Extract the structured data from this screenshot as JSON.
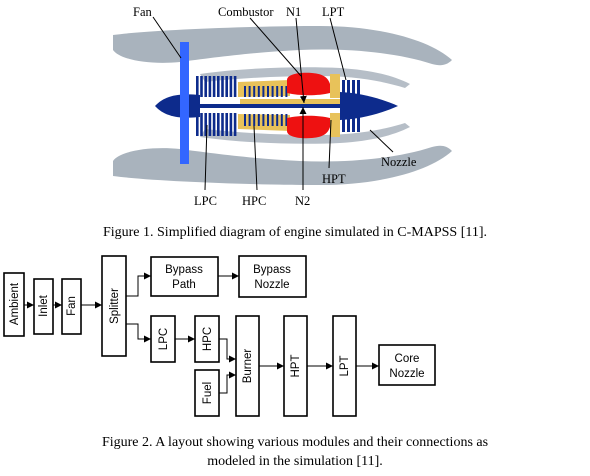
{
  "figure1": {
    "labels": {
      "fan": "Fan",
      "combustor": "Combustor",
      "n1": "N1",
      "lpt": "LPT",
      "nozzle": "Nozzle",
      "hpt": "HPT",
      "lpc": "LPC",
      "hpc": "HPC",
      "n2": "N2"
    },
    "caption": "Figure 1. Simplified diagram of engine simulated in C-MAPSS [11].",
    "colors": {
      "nacelle": "#a9b3bd",
      "fan": "#3366ff",
      "spool": "#0d2b8c",
      "compressor": "#e8c25a",
      "combustor": "#ee1111"
    }
  },
  "figure2": {
    "modules": {
      "ambient": "Ambient",
      "inlet": "Inlet",
      "fan": "Fan",
      "splitter": "Splitter",
      "bypass_path_l1": "Bypass",
      "bypass_path_l2": "Path",
      "bypass_nozzle_l1": "Bypass",
      "bypass_nozzle_l2": "Nozzle",
      "lpc": "LPC",
      "hpc": "HPC",
      "fuel": "Fuel",
      "burner": "Burner",
      "hpt": "HPT",
      "lpt": "LPT",
      "core_nozzle_l1": "Core",
      "core_nozzle_l2": "Nozzle"
    },
    "caption_line1": "Figure 2. A layout showing various modules and their connections as",
    "caption_line2": "modeled in the simulation [11]."
  }
}
